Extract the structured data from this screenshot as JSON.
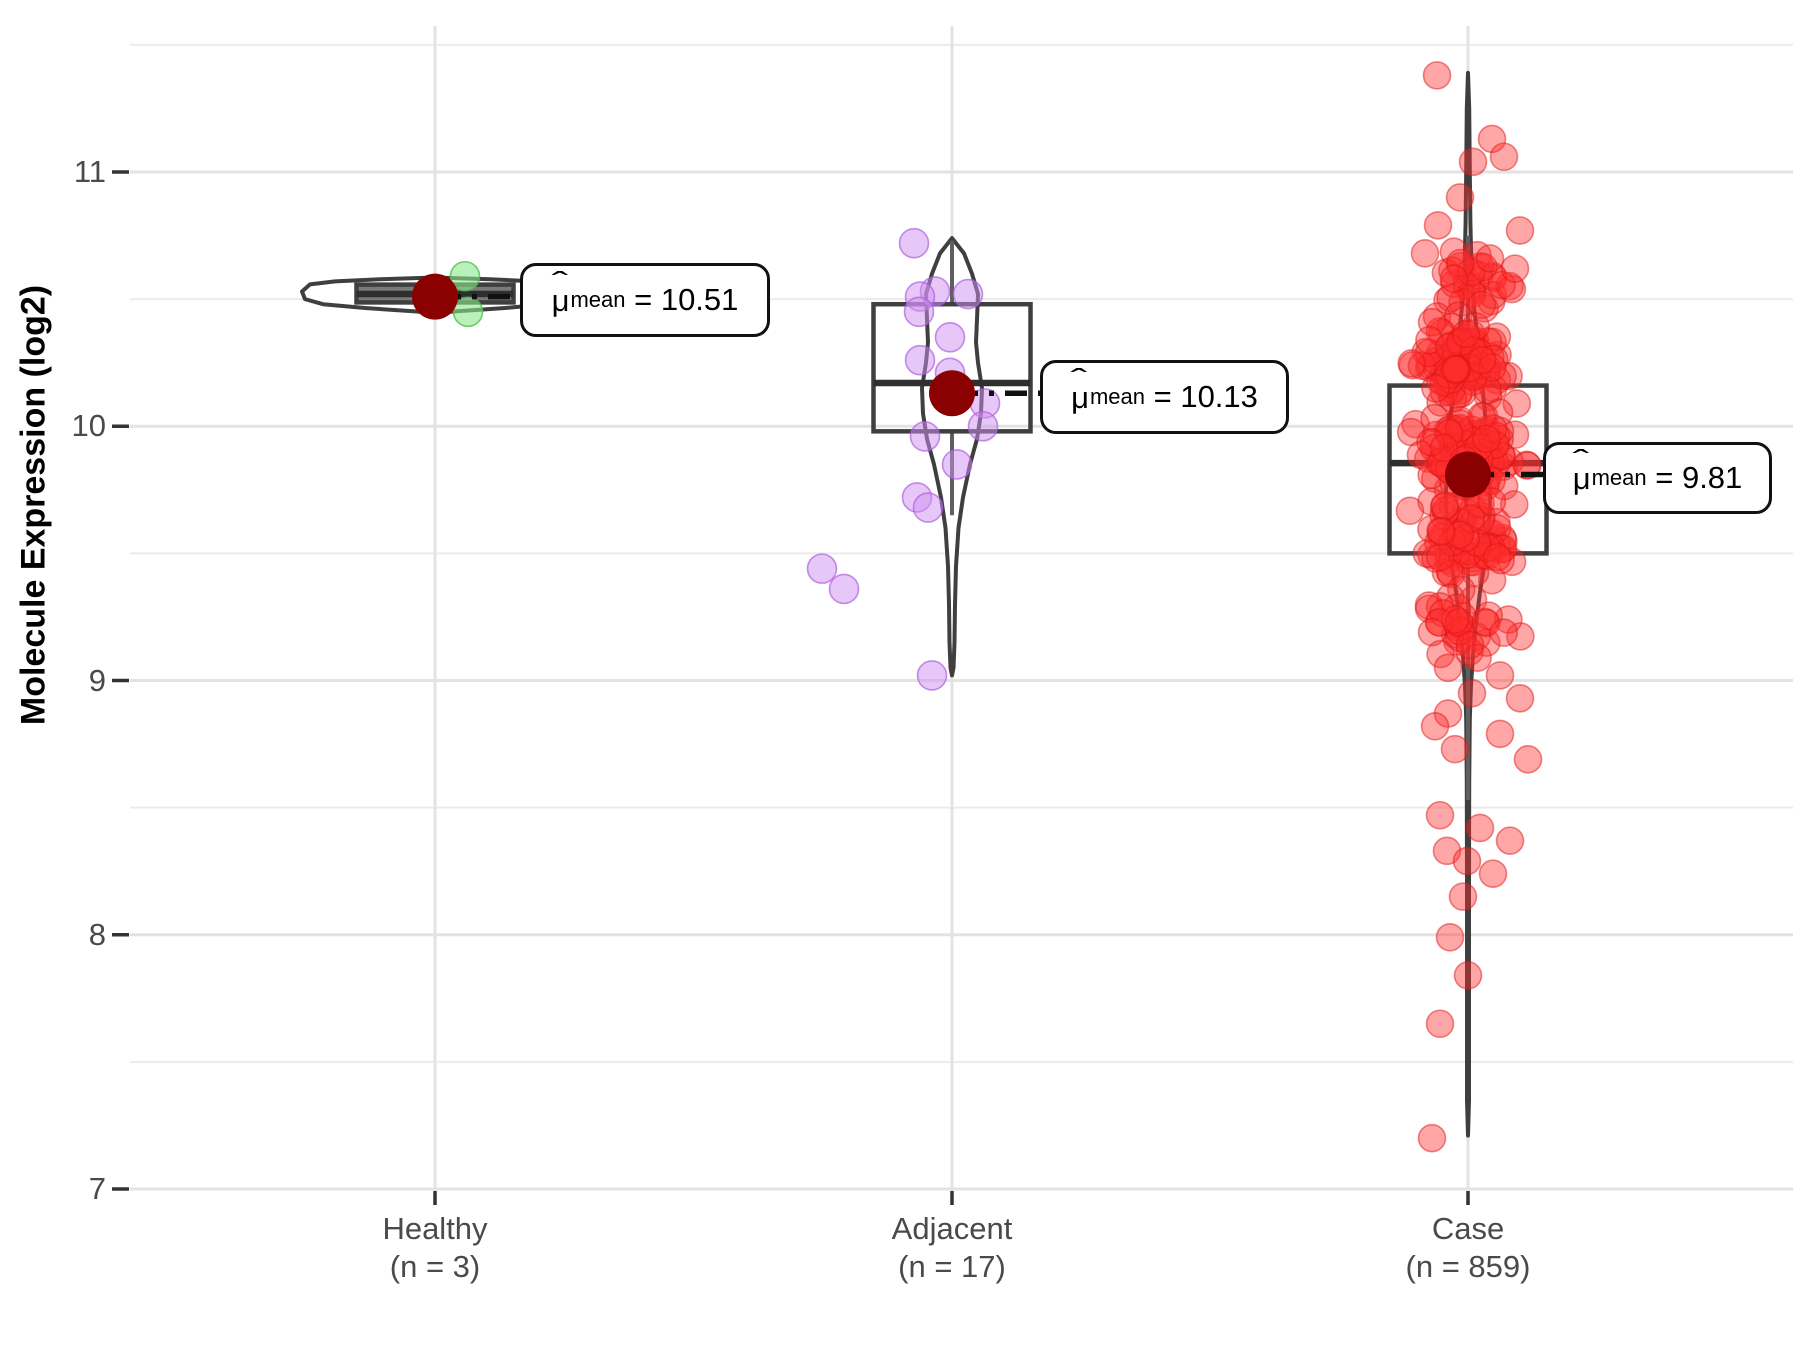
{
  "chart_data": {
    "type": "violin-box-jitter",
    "title": "",
    "ylabel": "Molecule Expression (log2)",
    "y_axis": {
      "tick_labels": [
        "11",
        "10",
        "9",
        "8",
        "7"
      ],
      "tick_values": [
        11,
        10,
        9,
        8,
        7
      ],
      "minor_gridlines": [
        11.5,
        10.5,
        9.5,
        8.5,
        7.5
      ],
      "ylim": [
        6.85,
        11.58
      ],
      "grid": "on",
      "legend": "none"
    },
    "annotation": {
      "mu": "μ",
      "hat": "ˆ",
      "sub": "mean"
    },
    "style": {
      "outline": "#3F3F3F",
      "whisker": "#5f5f5f",
      "mean_color": "#8B0000",
      "grid_major": "#E3E3E3",
      "grid_minor": "#ECECEC",
      "tick": "#333333",
      "axis_text": "#4a4a4a",
      "violin_fill": "#ffffff",
      "connector": "#111111"
    },
    "groups": [
      {
        "label": "Healthy",
        "sublabel": "(n = 3)",
        "n": 3,
        "mean": 10.51,
        "mean_text": " = 10.51",
        "box": {
          "q1": 10.487,
          "median": 10.52,
          "q3": 10.557,
          "whisker_low": null,
          "whisker_high": null,
          "fill": "#7a7a7a"
        },
        "violin_range": [
          10.44,
          10.59
        ],
        "violin_profile": [
          [
            10.585,
            0
          ],
          [
            10.578,
            55
          ],
          [
            10.57,
            100
          ],
          [
            10.558,
            125
          ],
          [
            10.53,
            133
          ],
          [
            10.5,
            130
          ],
          [
            10.48,
            112
          ],
          [
            10.465,
            70
          ],
          [
            10.452,
            20
          ],
          [
            10.445,
            0
          ]
        ],
        "points": [
          [
            30,
            10.59
          ],
          [
            2,
            10.51
          ],
          [
            33,
            10.45
          ]
        ],
        "style": {
          "point_fill": "#8ce68c",
          "point_stroke": "#4fbf4f",
          "fill_opacity": 0.6,
          "stroke_opacity": 0.8,
          "point_radius": 14.5
        }
      },
      {
        "label": "Adjacent",
        "sublabel": "(n = 17)",
        "n": 17,
        "mean": 10.13,
        "mean_text": " = 10.13",
        "box": {
          "q1": 9.98,
          "median": 10.17,
          "q3": 10.48,
          "whisker_low": 9.65,
          "whisker_high": 10.73,
          "fill": "none"
        },
        "violin_range": [
          9.02,
          10.74
        ],
        "violin_profile": [
          [
            10.74,
            0
          ],
          [
            10.68,
            12
          ],
          [
            10.6,
            20
          ],
          [
            10.52,
            26
          ],
          [
            10.42,
            25
          ],
          [
            10.33,
            24
          ],
          [
            10.25,
            26
          ],
          [
            10.15,
            30
          ],
          [
            10.05,
            29
          ],
          [
            9.95,
            25
          ],
          [
            9.85,
            18
          ],
          [
            9.72,
            11
          ],
          [
            9.6,
            6.5
          ],
          [
            9.45,
            4
          ],
          [
            9.3,
            3
          ],
          [
            9.15,
            2.5
          ],
          [
            9.05,
            1.5
          ],
          [
            9.02,
            0
          ]
        ],
        "points": [
          [
            -38,
            10.72
          ],
          [
            -17,
            10.53
          ],
          [
            16,
            10.52
          ],
          [
            -32,
            10.51
          ],
          [
            -33,
            10.45
          ],
          [
            -2,
            10.35
          ],
          [
            -32,
            10.26
          ],
          [
            -2,
            10.21
          ],
          [
            33,
            10.09
          ],
          [
            31,
            10.0
          ],
          [
            -27,
            9.96
          ],
          [
            5,
            9.85
          ],
          [
            -35,
            9.72
          ],
          [
            -24,
            9.68
          ],
          [
            -130,
            9.44
          ],
          [
            -108,
            9.36
          ],
          [
            -20,
            9.02
          ]
        ],
        "style": {
          "point_fill": "#cf8ff0",
          "point_stroke": "#ad5fe0",
          "fill_opacity": 0.5,
          "stroke_opacity": 0.7,
          "point_radius": 14.5
        }
      },
      {
        "label": "Case",
        "sublabel": "(n = 859)",
        "n": 859,
        "mean": 9.81,
        "mean_text": " = 9.81",
        "box": {
          "q1": 9.5,
          "median": 9.855,
          "q3": 10.16,
          "whisker_low": 8.53,
          "whisker_high": 10.75,
          "fill": "none"
        },
        "violin_range": [
          7.2,
          11.39
        ],
        "violin_profile": [
          [
            11.39,
            0
          ],
          [
            11.25,
            1.2
          ],
          [
            11.0,
            1.8
          ],
          [
            10.8,
            2.4
          ],
          [
            10.62,
            3.5
          ],
          [
            10.47,
            6
          ],
          [
            10.33,
            10
          ],
          [
            10.2,
            13.5
          ],
          [
            10.05,
            17
          ],
          [
            9.9,
            20
          ],
          [
            9.75,
            22
          ],
          [
            9.6,
            21
          ],
          [
            9.47,
            17
          ],
          [
            9.35,
            12
          ],
          [
            9.22,
            8
          ],
          [
            9.1,
            5
          ],
          [
            8.98,
            3
          ],
          [
            8.85,
            1.8
          ],
          [
            8.6,
            1.2
          ],
          [
            8.2,
            1
          ],
          [
            7.7,
            1
          ],
          [
            7.35,
            1
          ],
          [
            7.21,
            0
          ]
        ],
        "points": [
          [
            -31,
            11.38
          ],
          [
            24,
            11.13
          ],
          [
            36,
            11.06
          ],
          [
            5,
            11.04
          ],
          [
            -8,
            10.9
          ],
          [
            -30,
            10.79
          ],
          [
            52,
            10.77
          ],
          [
            -43,
            10.68
          ],
          [
            22,
            10.66
          ],
          [
            47,
            10.62
          ],
          [
            -14,
            10.58
          ],
          [
            -13,
            9.24
          ],
          [
            -36,
            9.19
          ],
          [
            2,
            9.14
          ],
          [
            -20,
            9.05
          ],
          [
            32,
            9.02
          ],
          [
            4,
            8.95
          ],
          [
            52,
            8.93
          ],
          [
            -20,
            8.87
          ],
          [
            -33,
            8.82
          ],
          [
            32,
            8.79
          ],
          [
            -13,
            8.73
          ],
          [
            60,
            8.69
          ],
          [
            -28,
            8.47
          ],
          [
            12,
            8.42
          ],
          [
            42,
            8.37
          ],
          [
            -21,
            8.33
          ],
          [
            -1,
            8.29
          ],
          [
            25,
            8.24
          ],
          [
            -5,
            8.15
          ],
          [
            -18,
            7.99
          ],
          [
            0,
            7.84
          ],
          [
            -28,
            7.65
          ],
          [
            -36,
            7.2
          ]
        ],
        "cloud": {
          "seed": 11,
          "x_spread": 68,
          "bands": [
            [
              10.45,
              10.72,
              28
            ],
            [
              10.08,
              10.45,
              92
            ],
            [
              9.72,
              10.08,
              100
            ],
            [
              9.38,
              9.72,
              72
            ],
            [
              9.05,
              9.38,
              30
            ]
          ]
        },
        "style": {
          "point_fill": "#ff2e2e",
          "point_stroke": "#e01414",
          "fill_opacity": 0.42,
          "stroke_opacity": 0.5,
          "point_radius": 13.5
        }
      }
    ]
  }
}
